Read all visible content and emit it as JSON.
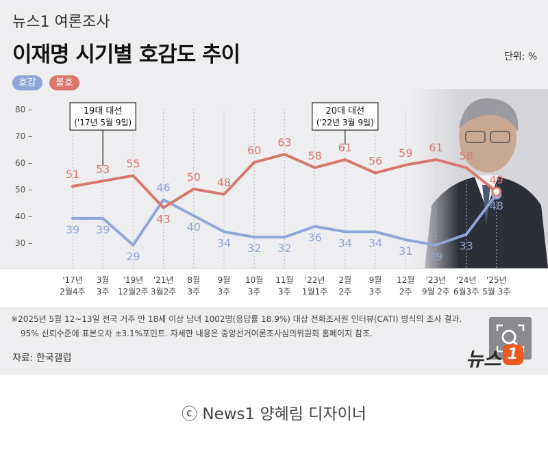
{
  "header": {
    "subtitle": "뉴스1 여론조사",
    "title": "이재명 시기별 호감도 추이",
    "unit": "단위: %"
  },
  "legend": {
    "favorable": "호감",
    "unfavorable": "불호"
  },
  "colors": {
    "favorable": "#8ea6d8",
    "unfavorable": "#d9776c",
    "background": "#eeeef0"
  },
  "chart_data": {
    "type": "line",
    "categories": [
      [
        "'17년",
        "2월4주"
      ],
      [
        "3월",
        "3주"
      ],
      [
        "'19년",
        "12월2주"
      ],
      [
        "'21년",
        "3월2주"
      ],
      [
        "8월",
        "3주"
      ],
      [
        "9월",
        "3주"
      ],
      [
        "10월",
        "3주"
      ],
      [
        "11월",
        "3주"
      ],
      [
        "'22년",
        "1월1주"
      ],
      [
        "2월",
        "2주"
      ],
      [
        "9월",
        "3주"
      ],
      [
        "12월",
        "2주"
      ],
      [
        "'23년",
        "9월 2주"
      ],
      [
        "'24년",
        "6월3주"
      ],
      [
        "'25년",
        "5월 3주"
      ]
    ],
    "series": [
      {
        "name": "호감",
        "color": "#8ea6d8",
        "values": [
          39,
          39,
          29,
          46,
          40,
          34,
          32,
          32,
          36,
          34,
          34,
          31,
          29,
          33,
          48
        ]
      },
      {
        "name": "불호",
        "color": "#d9776c",
        "values": [
          51,
          53,
          55,
          43,
          50,
          48,
          60,
          63,
          58,
          61,
          56,
          59,
          61,
          58,
          49
        ]
      }
    ],
    "yticks": [
      30,
      40,
      50,
      60,
      70,
      80
    ],
    "ylim": [
      25,
      80
    ],
    "annotations": [
      {
        "index": 1,
        "line1": "19대 대선",
        "line2": "('17년 5월 9일)"
      },
      {
        "index": 9,
        "line1": "20대 대선",
        "line2": "('22년 3월 9일)"
      }
    ]
  },
  "notes": {
    "line1": "※2025년 5월 12~13일 전국 거주 만 18세 이상 남녀 1002명(응답률 18.9%) 대상 전화조사원 인터뷰(CATI) 방식의 조사 결과.",
    "line2": "95% 신뢰수준에 표본오차 ±3.1%포인트. 자세한 내용은 중앙선거여론조사심의위원회 홈페이지 참조."
  },
  "source": "자료: 한국갤럽",
  "logo": {
    "text": "뉴스",
    "mark": "1"
  },
  "credit": "ⓒ News1 양혜림 디자이너",
  "icons": {
    "zoom": "zoom-magnifier-icon"
  }
}
